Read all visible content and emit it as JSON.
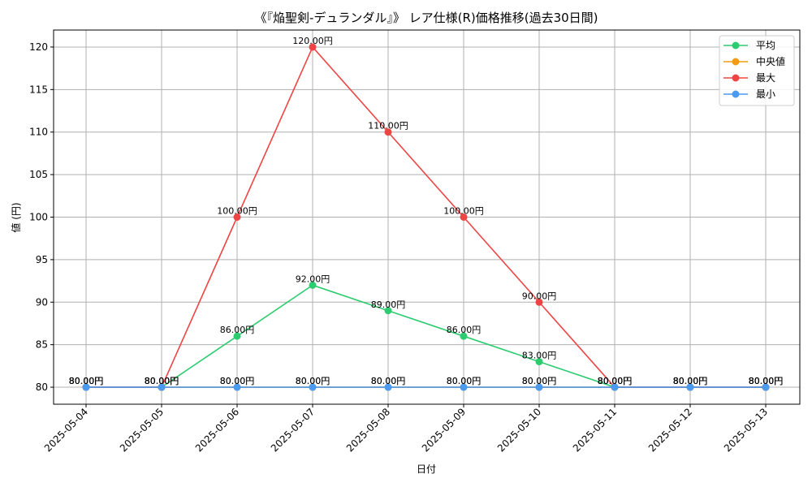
{
  "chart_data": {
    "type": "line",
    "title": "《『焔聖剣-デュランダル』》 レア仕様(R)価格推移(過去30日間)",
    "xlabel": "日付",
    "ylabel": "値 (円)",
    "ylim": [
      78,
      122
    ],
    "yticks": [
      80,
      85,
      90,
      95,
      100,
      105,
      110,
      115,
      120
    ],
    "grid": true,
    "legend_position": "top-right",
    "value_suffix": "円",
    "x": [
      "2025-05-04",
      "2025-05-05",
      "2025-05-06",
      "2025-05-07",
      "2025-05-08",
      "2025-05-09",
      "2025-05-10",
      "2025-05-11",
      "2025-05-12",
      "2025-05-13"
    ],
    "series": [
      {
        "name": "平均",
        "color": "#2ecc71",
        "values": [
          80,
          80,
          86,
          92,
          89,
          86,
          83,
          80,
          80,
          80
        ]
      },
      {
        "name": "中央値",
        "color": "#f39c12",
        "values": [
          80,
          80,
          80,
          80,
          80,
          80,
          80,
          80,
          80,
          80
        ]
      },
      {
        "name": "最大",
        "color": "#ef4444",
        "values": [
          80,
          80,
          100,
          120,
          110,
          100,
          90,
          80,
          80,
          80
        ]
      },
      {
        "name": "最小",
        "color": "#4a9af0",
        "values": [
          80,
          80,
          80,
          80,
          80,
          80,
          80,
          80,
          80,
          80
        ]
      }
    ]
  }
}
